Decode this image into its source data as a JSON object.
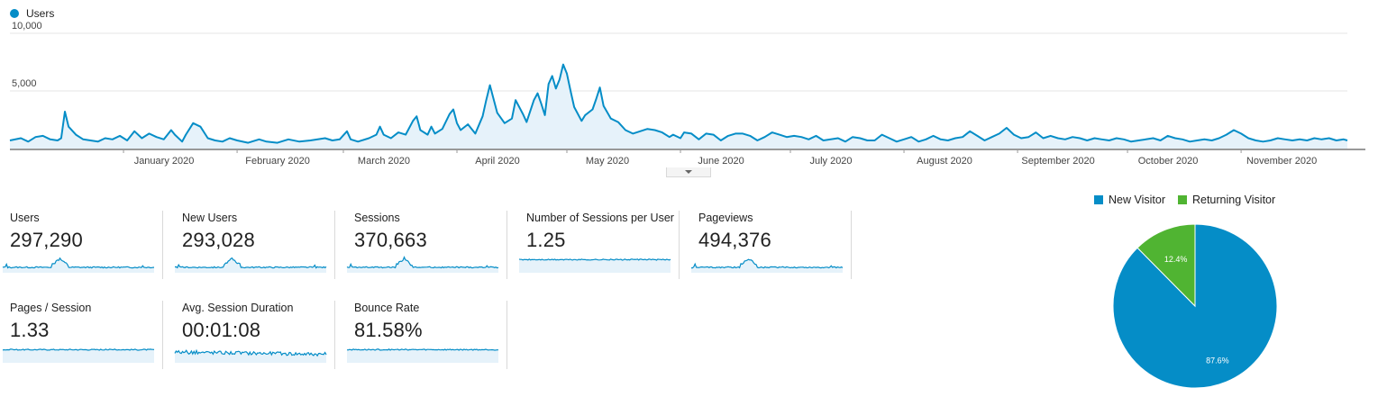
{
  "legend": {
    "label": "Users",
    "color": "#058dc7"
  },
  "colors": {
    "line": "#058dc7",
    "fill": "#e6f2fa",
    "new_visitor": "#058dc7",
    "returning_visitor": "#50b432",
    "grid": "#e5e5e5"
  },
  "chart_data": [
    {
      "type": "area",
      "series": [
        {
          "name": "Users"
        }
      ],
      "y_ticks": [
        "10,000",
        "5,000"
      ],
      "ylim": [
        0,
        11000
      ],
      "month_labels": [
        "January 2020",
        "February 2020",
        "March 2020",
        "April 2020",
        "May 2020",
        "June 2020",
        "July 2020",
        "August 2020",
        "September 2020",
        "October 2020",
        "November 2020"
      ],
      "x_range_days": [
        0,
        365
      ],
      "month_tick_days": [
        31,
        62,
        91,
        122,
        152,
        183,
        213,
        244,
        275,
        305,
        336
      ],
      "points": [
        [
          0,
          700
        ],
        [
          3,
          900
        ],
        [
          5,
          600
        ],
        [
          7,
          1000
        ],
        [
          9,
          1100
        ],
        [
          11,
          800
        ],
        [
          13,
          700
        ],
        [
          14,
          900
        ],
        [
          15,
          3200
        ],
        [
          16,
          1900
        ],
        [
          18,
          1200
        ],
        [
          20,
          800
        ],
        [
          22,
          700
        ],
        [
          24,
          600
        ],
        [
          26,
          900
        ],
        [
          28,
          800
        ],
        [
          30,
          1100
        ],
        [
          32,
          700
        ],
        [
          34,
          1500
        ],
        [
          36,
          900
        ],
        [
          38,
          1300
        ],
        [
          40,
          1000
        ],
        [
          42,
          800
        ],
        [
          44,
          1600
        ],
        [
          45,
          1200
        ],
        [
          47,
          600
        ],
        [
          48,
          1200
        ],
        [
          50,
          2200
        ],
        [
          52,
          1900
        ],
        [
          54,
          900
        ],
        [
          56,
          700
        ],
        [
          58,
          600
        ],
        [
          60,
          900
        ],
        [
          62,
          700
        ],
        [
          65,
          500
        ],
        [
          68,
          800
        ],
        [
          70,
          600
        ],
        [
          73,
          500
        ],
        [
          76,
          800
        ],
        [
          79,
          600
        ],
        [
          82,
          700
        ],
        [
          86,
          900
        ],
        [
          88,
          700
        ],
        [
          90,
          800
        ],
        [
          92,
          1500
        ],
        [
          93,
          800
        ],
        [
          95,
          600
        ],
        [
          98,
          900
        ],
        [
          100,
          1200
        ],
        [
          101,
          1900
        ],
        [
          102,
          1200
        ],
        [
          104,
          900
        ],
        [
          106,
          1400
        ],
        [
          108,
          1200
        ],
        [
          110,
          2400
        ],
        [
          111,
          2800
        ],
        [
          112,
          1600
        ],
        [
          114,
          1200
        ],
        [
          115,
          1900
        ],
        [
          116,
          1300
        ],
        [
          118,
          1700
        ],
        [
          120,
          3000
        ],
        [
          121,
          3400
        ],
        [
          122,
          2200
        ],
        [
          123,
          1600
        ],
        [
          125,
          2100
        ],
        [
          127,
          1300
        ],
        [
          129,
          2800
        ],
        [
          130,
          4200
        ],
        [
          131,
          5500
        ],
        [
          133,
          3100
        ],
        [
          135,
          2200
        ],
        [
          137,
          2600
        ],
        [
          138,
          4200
        ],
        [
          140,
          3000
        ],
        [
          141,
          2300
        ],
        [
          143,
          4200
        ],
        [
          144,
          4800
        ],
        [
          145,
          3900
        ],
        [
          146,
          2900
        ],
        [
          147,
          5600
        ],
        [
          148,
          6300
        ],
        [
          149,
          5200
        ],
        [
          150,
          6000
        ],
        [
          151,
          7300
        ],
        [
          152,
          6500
        ],
        [
          153,
          5000
        ],
        [
          154,
          3600
        ],
        [
          156,
          2400
        ],
        [
          157,
          2900
        ],
        [
          159,
          3400
        ],
        [
          160,
          4300
        ],
        [
          161,
          5300
        ],
        [
          162,
          3700
        ],
        [
          164,
          2600
        ],
        [
          166,
          2300
        ],
        [
          168,
          1600
        ],
        [
          170,
          1300
        ],
        [
          172,
          1500
        ],
        [
          174,
          1700
        ],
        [
          176,
          1600
        ],
        [
          178,
          1400
        ],
        [
          180,
          1000
        ],
        [
          181,
          1200
        ],
        [
          183,
          900
        ],
        [
          184,
          1400
        ],
        [
          186,
          1300
        ],
        [
          188,
          800
        ],
        [
          190,
          1300
        ],
        [
          192,
          1200
        ],
        [
          194,
          700
        ],
        [
          196,
          1100
        ],
        [
          198,
          1300
        ],
        [
          200,
          1300
        ],
        [
          202,
          1100
        ],
        [
          204,
          700
        ],
        [
          206,
          1000
        ],
        [
          208,
          1400
        ],
        [
          210,
          1200
        ],
        [
          212,
          1000
        ],
        [
          214,
          1100
        ],
        [
          216,
          1000
        ],
        [
          218,
          800
        ],
        [
          220,
          1100
        ],
        [
          222,
          700
        ],
        [
          224,
          800
        ],
        [
          226,
          900
        ],
        [
          228,
          600
        ],
        [
          230,
          1000
        ],
        [
          232,
          900
        ],
        [
          234,
          700
        ],
        [
          236,
          700
        ],
        [
          238,
          1200
        ],
        [
          240,
          900
        ],
        [
          242,
          600
        ],
        [
          244,
          800
        ],
        [
          246,
          1000
        ],
        [
          248,
          600
        ],
        [
          250,
          800
        ],
        [
          252,
          1100
        ],
        [
          254,
          800
        ],
        [
          256,
          700
        ],
        [
          258,
          900
        ],
        [
          260,
          1000
        ],
        [
          262,
          1500
        ],
        [
          264,
          1100
        ],
        [
          266,
          700
        ],
        [
          268,
          1000
        ],
        [
          270,
          1300
        ],
        [
          272,
          1800
        ],
        [
          274,
          1200
        ],
        [
          276,
          900
        ],
        [
          278,
          1000
        ],
        [
          280,
          1400
        ],
        [
          282,
          900
        ],
        [
          284,
          1100
        ],
        [
          286,
          900
        ],
        [
          288,
          800
        ],
        [
          290,
          1000
        ],
        [
          292,
          900
        ],
        [
          294,
          700
        ],
        [
          296,
          900
        ],
        [
          298,
          800
        ],
        [
          300,
          700
        ],
        [
          302,
          900
        ],
        [
          304,
          800
        ],
        [
          306,
          600
        ],
        [
          308,
          700
        ],
        [
          310,
          800
        ],
        [
          312,
          900
        ],
        [
          314,
          700
        ],
        [
          316,
          1100
        ],
        [
          318,
          900
        ],
        [
          320,
          800
        ],
        [
          322,
          600
        ],
        [
          324,
          700
        ],
        [
          326,
          800
        ],
        [
          328,
          700
        ],
        [
          330,
          900
        ],
        [
          332,
          1200
        ],
        [
          334,
          1600
        ],
        [
          336,
          1300
        ],
        [
          338,
          900
        ],
        [
          340,
          700
        ],
        [
          342,
          600
        ],
        [
          344,
          700
        ],
        [
          346,
          900
        ],
        [
          348,
          800
        ],
        [
          350,
          700
        ],
        [
          352,
          800
        ],
        [
          354,
          700
        ],
        [
          356,
          900
        ],
        [
          358,
          800
        ],
        [
          360,
          900
        ],
        [
          362,
          700
        ],
        [
          364,
          800
        ],
        [
          365,
          700
        ]
      ]
    },
    {
      "type": "pie",
      "slices": [
        {
          "name": "New Visitor",
          "value": 87.6,
          "label": "87.6%"
        },
        {
          "name": "Returning Visitor",
          "value": 12.4,
          "label": "12.4%"
        }
      ]
    }
  ],
  "metrics": [
    {
      "label": "Users",
      "value": "297,290",
      "spark": "spiky"
    },
    {
      "label": "New Users",
      "value": "293,028",
      "spark": "spiky"
    },
    {
      "label": "Sessions",
      "value": "370,663",
      "spark": "spiky"
    },
    {
      "label": "Number of Sessions per User",
      "value": "1.25",
      "spark": "flat"
    },
    {
      "label": "Pageviews",
      "value": "494,376",
      "spark": "spiky"
    },
    {
      "label": "Pages / Session",
      "value": "1.33",
      "spark": "flat"
    },
    {
      "label": "Avg. Session Duration",
      "value": "00:01:08",
      "spark": "noisy"
    },
    {
      "label": "Bounce Rate",
      "value": "81.58%",
      "spark": "flat"
    }
  ]
}
